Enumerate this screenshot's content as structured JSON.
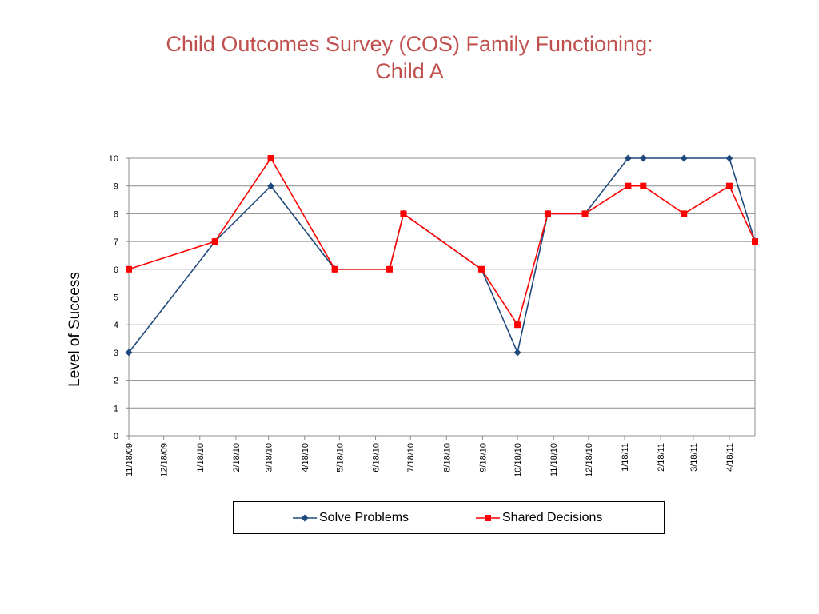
{
  "title": {
    "line1": "Child Outcomes Survey (COS) Family Functioning:",
    "line2": "Child A"
  },
  "chart_data": {
    "type": "line",
    "ylabel": "Level of Success",
    "xlabel": "",
    "ylim": [
      0,
      10
    ],
    "yticks": [
      0,
      1,
      2,
      3,
      4,
      5,
      6,
      7,
      8,
      9,
      10
    ],
    "x_axis": {
      "start": "2009-11-18",
      "end": "2011-05-10",
      "tick_dates": [
        "2009-11-18",
        "2009-12-18",
        "2010-01-18",
        "2010-02-18",
        "2010-03-18",
        "2010-04-18",
        "2010-05-18",
        "2010-06-18",
        "2010-07-18",
        "2010-08-18",
        "2010-09-18",
        "2010-10-18",
        "2010-11-18",
        "2010-12-18",
        "2011-01-18",
        "2011-02-18",
        "2011-03-18",
        "2011-04-18"
      ],
      "tick_labels": [
        "11/18/09",
        "12/18/09",
        "1/18/10",
        "2/18/10",
        "3/18/10",
        "4/18/10",
        "5/18/10",
        "6/18/10",
        "7/18/10",
        "8/18/10",
        "9/18/10",
        "10/18/10",
        "11/18/10",
        "12/18/10",
        "1/18/11",
        "2/18/11",
        "3/18/11",
        "4/18/11"
      ]
    },
    "grid": true,
    "legend": "bottom",
    "series": [
      {
        "name": "Solve Problems",
        "color": "#1f497d",
        "marker": "diamond",
        "x": [
          "2009-11-18",
          "2010-01-31",
          "2010-03-20",
          "2010-05-14",
          "2010-06-30",
          "2010-07-12",
          "2010-09-17",
          "2010-10-18",
          "2010-11-13",
          "2010-12-15",
          "2011-01-21",
          "2011-02-03",
          "2011-03-10",
          "2011-04-18",
          "2011-05-10"
        ],
        "values": [
          3,
          7,
          9,
          6,
          6,
          8,
          6,
          3,
          8,
          8,
          10,
          10,
          10,
          10,
          7
        ]
      },
      {
        "name": "Shared Decisions",
        "color": "#ff0000",
        "marker": "square",
        "x": [
          "2009-11-18",
          "2010-01-31",
          "2010-03-20",
          "2010-05-14",
          "2010-06-30",
          "2010-07-12",
          "2010-09-17",
          "2010-10-18",
          "2010-11-13",
          "2010-12-15",
          "2011-01-21",
          "2011-02-03",
          "2011-03-10",
          "2011-04-18",
          "2011-05-10"
        ],
        "values": [
          6,
          7,
          10,
          6,
          6,
          8,
          6,
          4,
          8,
          8,
          9,
          9,
          8,
          9,
          7
        ]
      }
    ]
  }
}
